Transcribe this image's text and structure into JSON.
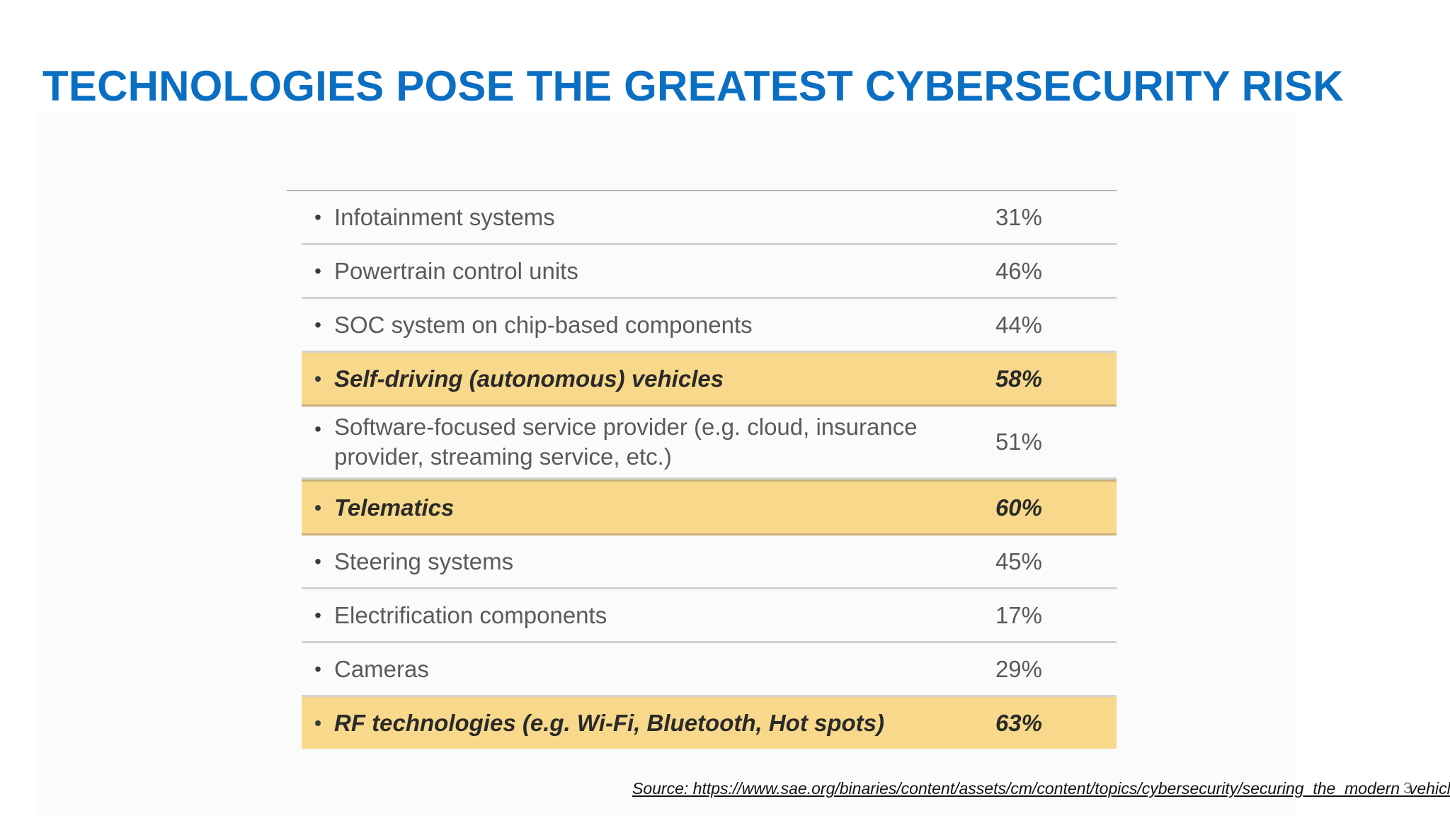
{
  "slide": {
    "title": "TECHNOLOGIES POSE THE GREATEST CYBERSECURITY RISK",
    "source": "Source: https://www.sae.org/binaries/content/assets/cm/content/topics/cybersecurity/securing_the_modern_vehicle.pdf",
    "page_number": "3"
  },
  "table": {
    "bullet": "•",
    "rows": [
      {
        "label": "Infotainment systems",
        "value": "31%",
        "highlighted": false
      },
      {
        "label": "Powertrain control units",
        "value": "46%",
        "highlighted": false
      },
      {
        "label": "SOC system on chip-based components",
        "value": "44%",
        "highlighted": false
      },
      {
        "label": "Self-driving (autonomous) vehicles",
        "value": "58%",
        "highlighted": true
      },
      {
        "label": "Software-focused service provider (e.g. cloud, insurance provider, streaming service, etc.)",
        "value": "51%",
        "highlighted": false
      },
      {
        "label": "Telematics",
        "value": "60%",
        "highlighted": true
      },
      {
        "label": "Steering systems",
        "value": "45%",
        "highlighted": false
      },
      {
        "label": "Electrification components",
        "value": "17%",
        "highlighted": false
      },
      {
        "label": "Cameras",
        "value": "29%",
        "highlighted": false
      },
      {
        "label": "RF technologies (e.g. Wi-Fi, Bluetooth, Hot spots)",
        "value": "63%",
        "highlighted": true
      }
    ]
  },
  "colors": {
    "title": "#0a6fc2",
    "highlight": "#f8d98b"
  }
}
